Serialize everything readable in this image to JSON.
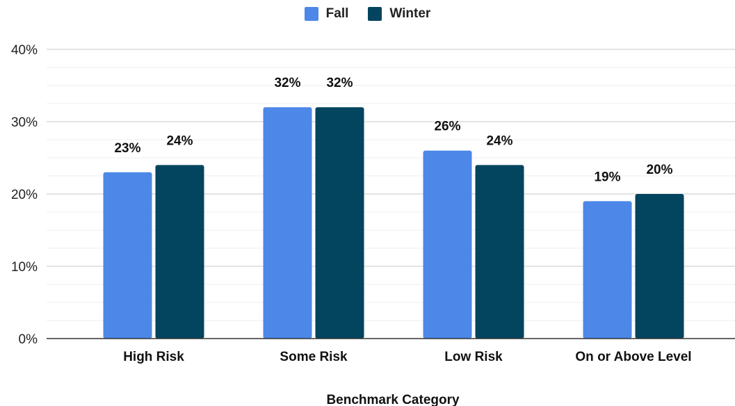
{
  "chart_data": {
    "type": "bar",
    "categories": [
      "High Risk",
      "Some Risk",
      "Low Risk",
      "On or Above Level"
    ],
    "series": [
      {
        "name": "Fall",
        "values": [
          23,
          32,
          26,
          19
        ],
        "labels": [
          "23%",
          "32%",
          "26%",
          "19%"
        ],
        "color": "#4d87e8"
      },
      {
        "name": "Winter",
        "values": [
          24,
          32,
          24,
          20
        ],
        "labels": [
          "24%",
          "32%",
          "24%",
          "20%"
        ],
        "color": "#03445e"
      }
    ],
    "title": "",
    "xlabel": "Benchmark Category",
    "ylabel": "",
    "ylim": [
      0,
      40
    ],
    "yticks": [
      0,
      10,
      20,
      30,
      40
    ],
    "ytick_labels": [
      "0%",
      "10%",
      "20%",
      "30%",
      "40%"
    ],
    "legend_position": "top-center",
    "grid": true,
    "minor_grid": true
  }
}
